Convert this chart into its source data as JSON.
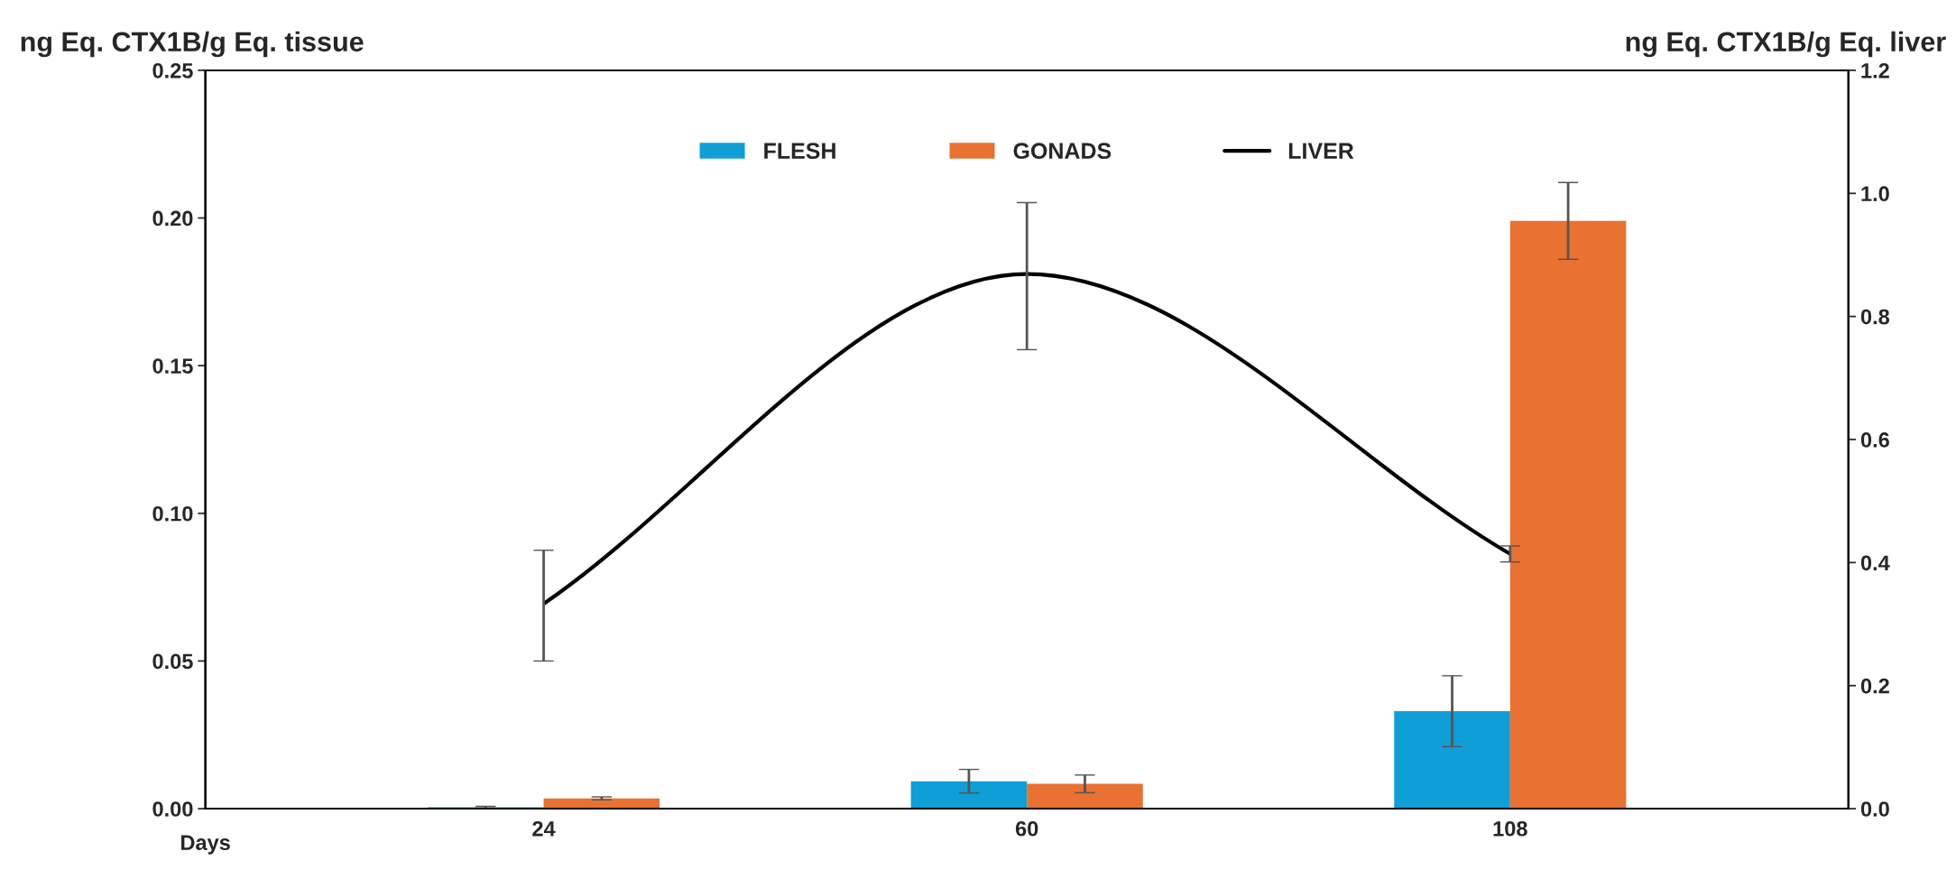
{
  "chart_data": {
    "type": "bar",
    "xlabel": "Days",
    "ylabel": "ng Eq. CTX1B/g Eq. tissue",
    "y2label": "ng Eq. CTX1B/g Eq. liver",
    "categories": [
      "24",
      "60",
      "108"
    ],
    "series": [
      {
        "name": "FLESH",
        "color": "#0f9ed5",
        "values": [
          0.0005,
          0.0093,
          0.033
        ],
        "errors": [
          0.0003,
          0.004,
          0.012
        ]
      },
      {
        "name": "GONADS",
        "color": "#e97132",
        "values": [
          0.0035,
          0.0084,
          0.199
        ],
        "errors": [
          0.0005,
          0.003,
          0.013
        ]
      },
      {
        "name": "LIVER",
        "type": "line",
        "axis": "y2",
        "color": "#000000",
        "values": [
          0.333,
          0.869,
          0.414
        ],
        "errors": [
          [
            0.24,
            0.42
          ],
          [
            0.746,
            0.985
          ],
          [
            0.401,
            0.427
          ]
        ]
      }
    ],
    "ylim": [
      0,
      0.25
    ],
    "yticks": [
      {
        "value": 0,
        "label": "0.00"
      },
      0.05,
      {
        "value": 0.1,
        "label": "0.10"
      },
      0.15,
      {
        "value": 0.2,
        "label": "0.20"
      },
      0.25
    ],
    "y2lim": [
      0,
      1.2
    ],
    "y2ticks": [
      {
        "value": 0,
        "label": "0.0"
      },
      0.2,
      0.4,
      0.6,
      0.8,
      {
        "value": 1,
        "label": "1.0"
      },
      1.2
    ],
    "grid": false,
    "legend": "top",
    "marker": "none",
    "line_style": "solid"
  }
}
